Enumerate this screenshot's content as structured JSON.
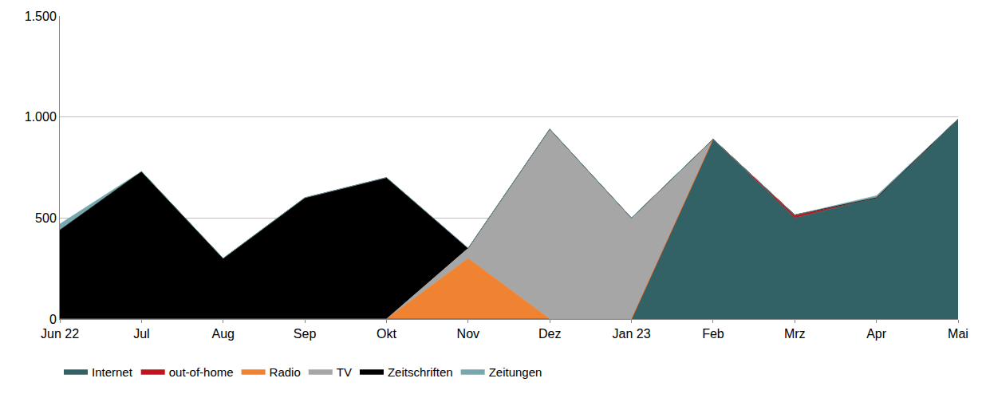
{
  "chart_data": {
    "type": "area",
    "stacked": true,
    "grid": true,
    "legend": "bottom left",
    "categories": [
      "Jun 22",
      "Jul",
      "Aug",
      "Sep",
      "Okt",
      "Nov",
      "Dez",
      "Jan 23",
      "Feb",
      "Mrz",
      "Apr",
      "Mai"
    ],
    "ylim": [
      0,
      1500
    ],
    "yticks": [
      0,
      500,
      {
        "value": 1000,
        "label": "1.000"
      },
      {
        "value": 1500,
        "label": "1.500"
      }
    ],
    "series": [
      {
        "name": "Internet",
        "color": "#336266",
        "values": [
          0,
          0,
          0,
          0,
          0,
          0,
          0,
          0,
          890,
          500,
          600,
          990
        ]
      },
      {
        "name": "out-of-home",
        "color": "#c0151f",
        "values": [
          0,
          0,
          0,
          0,
          0,
          0,
          0,
          0,
          0,
          15,
          0,
          0
        ]
      },
      {
        "name": "Radio",
        "color": "#f08331",
        "values": [
          0,
          0,
          0,
          0,
          0,
          300,
          0,
          0,
          0,
          0,
          0,
          0
        ]
      },
      {
        "name": "TV",
        "color": "#a6a6a6",
        "values": [
          0,
          0,
          0,
          0,
          0,
          50,
          940,
          500,
          0,
          0,
          0,
          0
        ]
      },
      {
        "name": "Zeitschriften",
        "color": "#000000",
        "values": [
          440,
          730,
          300,
          600,
          700,
          0,
          0,
          0,
          0,
          0,
          0,
          0
        ]
      },
      {
        "name": "Zeitungen",
        "color": "#76a8ad",
        "values": [
          30,
          0,
          0,
          0,
          0,
          0,
          0,
          0,
          0,
          0,
          10,
          0
        ]
      }
    ]
  }
}
